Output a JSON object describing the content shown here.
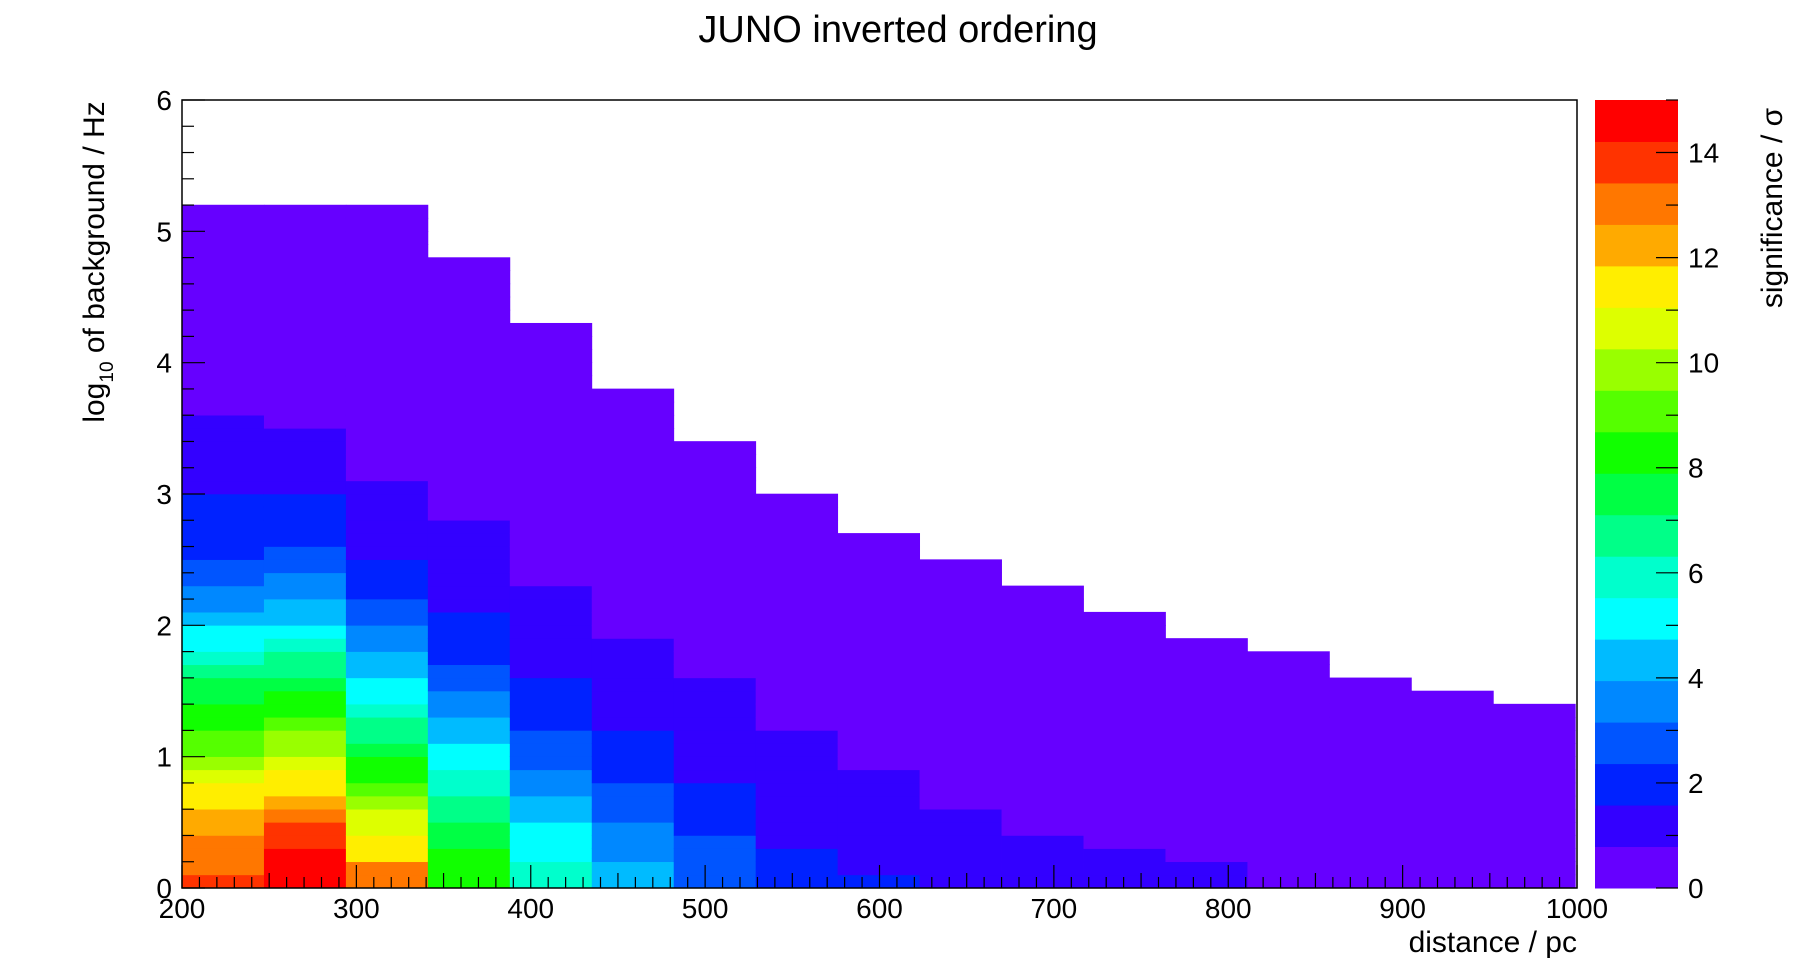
{
  "chart_data": {
    "type": "heatmap",
    "title": "JUNO inverted ordering",
    "xlabel": "distance / pc",
    "ylabel_prefix": "log",
    "ylabel_sub": "10",
    "ylabel_suffix": " of background / Hz",
    "zlabel": "significance / σ",
    "xlim": [
      200,
      1000
    ],
    "ylim": [
      0,
      6
    ],
    "zlim": [
      0,
      15
    ],
    "x_ticks": [
      "200",
      "300",
      "400",
      "500",
      "600",
      "700",
      "800",
      "900",
      "1000"
    ],
    "y_ticks": [
      "0",
      "1",
      "2",
      "3",
      "4",
      "5",
      "6"
    ],
    "z_ticks": [
      "0",
      "2",
      "4",
      "6",
      "8",
      "10",
      "12",
      "14"
    ],
    "bin_width": 47,
    "bin_height": 0.1,
    "palette": [
      "#6600ff",
      "#3300ff",
      "#0022ff",
      "#0055ff",
      "#0088ff",
      "#00bbff",
      "#00ffff",
      "#00ffcc",
      "#00ff88",
      "#00ff44",
      "#11ff00",
      "#55ff00",
      "#99ff00",
      "#ddff00",
      "#ffee00",
      "#ffaa00",
      "#ff7700",
      "#ff3300",
      "#ff0000"
    ],
    "columns": [
      {
        "x": 200,
        "top": 5.2,
        "levels": [
          17,
          16,
          16,
          16,
          15,
          15,
          14,
          14,
          13,
          12,
          11,
          11,
          10,
          10,
          9,
          9,
          8,
          7,
          6,
          6,
          5,
          4,
          4,
          3,
          3,
          2,
          2,
          2,
          2,
          2,
          1,
          1,
          1,
          1,
          1,
          1
        ]
      },
      {
        "x": 247,
        "top": 5.2,
        "levels": [
          18,
          18,
          18,
          17,
          17,
          16,
          15,
          14,
          14,
          13,
          12,
          12,
          11,
          10,
          10,
          9,
          8,
          8,
          7,
          6,
          5,
          5,
          4,
          4,
          3,
          3,
          2,
          2,
          2,
          2,
          1,
          1,
          1,
          1,
          1
        ]
      },
      {
        "x": 294,
        "top": 5.2,
        "levels": [
          16,
          16,
          14,
          14,
          13,
          13,
          12,
          11,
          10,
          10,
          9,
          8,
          8,
          7,
          6,
          6,
          5,
          5,
          4,
          4,
          3,
          3,
          2,
          2,
          2,
          1,
          1,
          1,
          1,
          1,
          1
        ]
      },
      {
        "x": 341,
        "top": 4.8,
        "levels": [
          10,
          10,
          10,
          9,
          9,
          8,
          8,
          7,
          7,
          6,
          6,
          5,
          5,
          4,
          4,
          3,
          3,
          2,
          2,
          2,
          2,
          1,
          1,
          1,
          1,
          1,
          1,
          1
        ]
      },
      {
        "x": 388,
        "top": 4.3,
        "levels": [
          7,
          7,
          6,
          6,
          6,
          5,
          5,
          4,
          4,
          3,
          3,
          3,
          2,
          2,
          2,
          2,
          1,
          1,
          1,
          1,
          1,
          1,
          1
        ]
      },
      {
        "x": 435,
        "top": 3.8,
        "levels": [
          5,
          5,
          4,
          4,
          4,
          3,
          3,
          3,
          2,
          2,
          2,
          2,
          1,
          1,
          1,
          1,
          1,
          1,
          1
        ]
      },
      {
        "x": 482,
        "top": 3.4,
        "levels": [
          3,
          3,
          3,
          3,
          2,
          2,
          2,
          2,
          1,
          1,
          1,
          1,
          1,
          1,
          1,
          1
        ]
      },
      {
        "x": 529,
        "top": 3.0,
        "levels": [
          2,
          2,
          2,
          1,
          1,
          1,
          1,
          1,
          1,
          1,
          1,
          1
        ]
      },
      {
        "x": 576,
        "top": 2.7,
        "levels": [
          2,
          1,
          1,
          1,
          1,
          1,
          1,
          1,
          1
        ]
      },
      {
        "x": 623,
        "top": 2.5,
        "levels": [
          1,
          1,
          1,
          1,
          1,
          1
        ]
      },
      {
        "x": 670,
        "top": 2.3,
        "levels": [
          1,
          1,
          1,
          1
        ]
      },
      {
        "x": 717,
        "top": 2.1,
        "levels": [
          1,
          1,
          1
        ]
      },
      {
        "x": 764,
        "top": 1.9,
        "levels": [
          1,
          1
        ]
      },
      {
        "x": 811,
        "top": 1.8,
        "levels": []
      },
      {
        "x": 858,
        "top": 1.6,
        "levels": []
      },
      {
        "x": 905,
        "top": 1.5,
        "levels": []
      },
      {
        "x": 952,
        "top": 1.4,
        "levels": []
      }
    ]
  }
}
